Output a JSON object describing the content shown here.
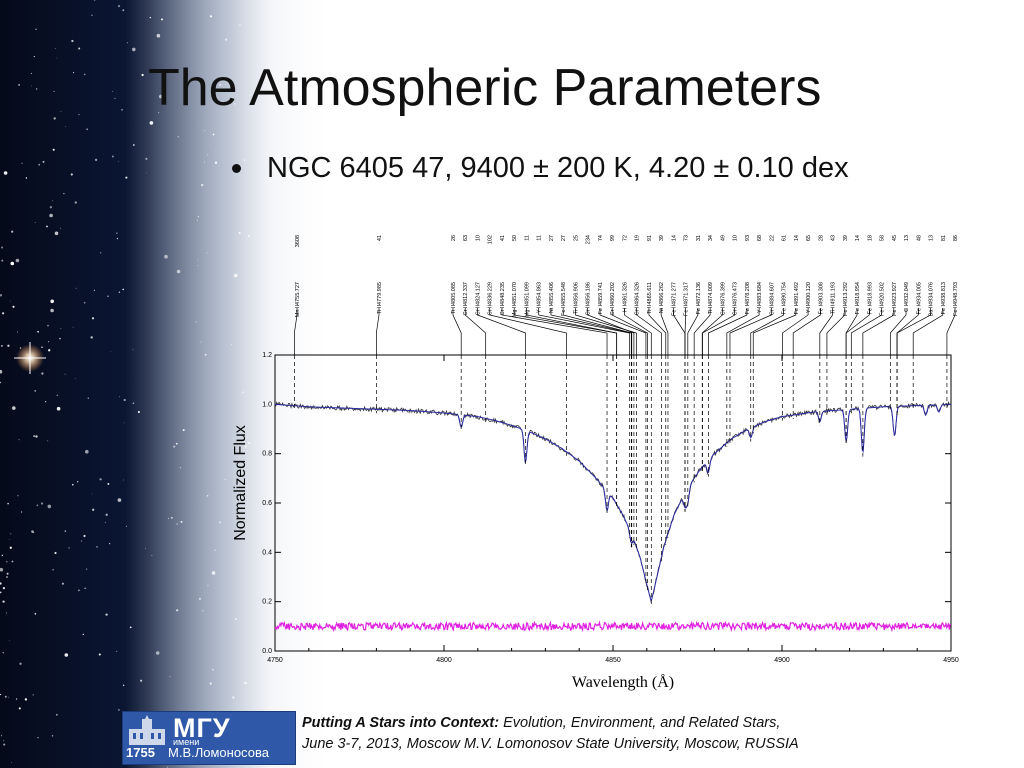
{
  "slide": {
    "title": "The Atmospheric Parameters",
    "bullet": "NGC 6405 47, 9400 ± 200 K, 4.20 ± 0.10 dex"
  },
  "footer": {
    "logo_mgu": "МГУ",
    "logo_imeni": "имени",
    "logo_name": "М.В.Ломоносова",
    "logo_year": "1755",
    "conf_bold": "Putting A Stars into Context:",
    "conf_rest": " Evolution, Environment, and Related Stars,",
    "conf_line2": "June 3-7, 2013, Moscow M.V. Lomonosov State University, Moscow, RUSSIA"
  },
  "colors": {
    "observed": "#333333",
    "model": "#2c2ca8",
    "residual": "#e020e0",
    "linemark": "#000000"
  },
  "chart_data": {
    "type": "line",
    "xlabel": "Wavelength (Å)",
    "ylabel": "Normalized Flux",
    "xlim": [
      4750,
      4950
    ],
    "ylim": [
      0.0,
      1.2
    ],
    "xticks": [
      "4750",
      "4800",
      "4850",
      "4900",
      "4950"
    ],
    "yticks": [
      "0.0",
      "0.2",
      "0.4",
      "0.6",
      "0.8",
      "1.0",
      "1.2"
    ],
    "hbeta_center": 4861.3,
    "spectrum_profile": {
      "x": [
        4750,
        4760,
        4770,
        4780,
        4790,
        4800,
        4810,
        4815,
        4820,
        4825,
        4830,
        4835,
        4840,
        4845,
        4850,
        4853,
        4856,
        4858,
        4860,
        4861.3,
        4863,
        4865,
        4868,
        4872,
        4876,
        4880,
        4885,
        4890,
        4895,
        4900,
        4905,
        4910,
        4920,
        4930,
        4940,
        4950
      ],
      "y": [
        1.0,
        0.99,
        0.985,
        0.98,
        0.975,
        0.965,
        0.95,
        0.935,
        0.915,
        0.89,
        0.86,
        0.82,
        0.77,
        0.7,
        0.62,
        0.55,
        0.46,
        0.38,
        0.27,
        0.2,
        0.3,
        0.42,
        0.55,
        0.66,
        0.74,
        0.8,
        0.86,
        0.9,
        0.93,
        0.95,
        0.96,
        0.97,
        0.98,
        0.99,
        0.995,
        1.0
      ]
    },
    "absorption_dips": [
      {
        "x": 4805.1,
        "depth": 0.05
      },
      {
        "x": 4824.1,
        "depth": 0.13
      },
      {
        "x": 4848.2,
        "depth": 0.08
      },
      {
        "x": 4855.4,
        "depth": 0.04
      },
      {
        "x": 4871.3,
        "depth": 0.05
      },
      {
        "x": 4872.1,
        "depth": 0.06
      },
      {
        "x": 4878.2,
        "depth": 0.05
      },
      {
        "x": 4890.8,
        "depth": 0.04
      },
      {
        "x": 4911.2,
        "depth": 0.04
      },
      {
        "x": 4919.0,
        "depth": 0.13
      },
      {
        "x": 4923.9,
        "depth": 0.18
      },
      {
        "x": 4933.3,
        "depth": 0.12
      },
      {
        "x": 4942.5,
        "depth": 0.04
      },
      {
        "x": 4946.4,
        "depth": 0.03
      }
    ],
    "residual_level": 0.1,
    "line_ids": [
      {
        "ion": "Mn II",
        "wl": "4755.727",
        "ew": "3608",
        "x": 4755.727
      },
      {
        "ion": "Ti II",
        "wl": "4779.985",
        "ew": "41",
        "x": 4779.985
      },
      {
        "ion": "Ti II",
        "wl": "4805.085",
        "ew": "26",
        "x": 4805.085
      },
      {
        "ion": "Cr II",
        "wl": "4812.337",
        "ew": "63",
        "x": 4812.337
      },
      {
        "ion": "Cr II",
        "wl": "4824.127",
        "ew": "10",
        "x": 4824.127
      },
      {
        "ion": "Cr II",
        "wl": "4836.229",
        "ew": "102",
        "x": 4836.229
      },
      {
        "ion": "Cr II",
        "wl": "4848.235",
        "ew": "41",
        "x": 4848.235
      },
      {
        "ion": "Mg II",
        "wl": "4851.070",
        "ew": "50",
        "x": 4851.07
      },
      {
        "ion": "Mg II",
        "wl": "4851.099",
        "ew": "11",
        "x": 4851.099
      },
      {
        "ion": "Y II",
        "wl": "4854.863",
        "ew": "11",
        "x": 4854.863
      },
      {
        "ion": "Ni I",
        "wl": "4855.406",
        "ew": "27",
        "x": 4855.406
      },
      {
        "ion": "Fe II",
        "wl": "4855.548",
        "ew": "27",
        "x": 4855.548
      },
      {
        "ion": "Ti II",
        "wl": "4856.906",
        "ew": "25",
        "x": 4856.906
      },
      {
        "ion": "Cr II",
        "wl": "4856.186",
        "ew": "234",
        "x": 4856.186
      },
      {
        "ion": "Fe I",
        "wl": "4859.741",
        "ew": "74",
        "x": 4859.741
      },
      {
        "ion": "Cr II",
        "wl": "4860.202",
        "ew": "99",
        "x": 4860.202
      },
      {
        "ion": "H I",
        "wl": "4861.326",
        "ew": "72",
        "x": 4861.326
      },
      {
        "ion": "Cr II",
        "wl": "4864.326",
        "ew": "19",
        "x": 4864.326
      },
      {
        "ion": "Ti II",
        "wl": "4865.611",
        "ew": "91",
        "x": 4865.611
      },
      {
        "ion": "Ni I",
        "wl": "4866.262",
        "ew": "39",
        "x": 4866.262
      },
      {
        "ion": "Fe II",
        "wl": "4871.277",
        "ew": "14",
        "x": 4871.277
      },
      {
        "ion": "Fe II",
        "wl": "4871.317",
        "ew": "73",
        "x": 4871.317
      },
      {
        "ion": "Fe I",
        "wl": "4872.136",
        "ew": "31",
        "x": 4872.136
      },
      {
        "ion": "Ti II",
        "wl": "4874.009",
        "ew": "34",
        "x": 4874.009
      },
      {
        "ion": "Cr II",
        "wl": "4876.399",
        "ew": "49",
        "x": 4876.399
      },
      {
        "ion": "Cr II",
        "wl": "4876.473",
        "ew": "10",
        "x": 4876.473
      },
      {
        "ion": "Fe I",
        "wl": "4878.208",
        "ew": "93",
        "x": 4878.208
      },
      {
        "ion": "Y II",
        "wl": "4883.684",
        "ew": "68",
        "x": 4883.684
      },
      {
        "ion": "Cr II",
        "wl": "4884.607",
        "ew": "22",
        "x": 4884.607
      },
      {
        "ion": "Fe I",
        "wl": "4890.754",
        "ew": "61",
        "x": 4890.754
      },
      {
        "ion": "Fe I",
        "wl": "4891.492",
        "ew": "14",
        "x": 4891.492
      },
      {
        "ion": "Y II",
        "wl": "4900.120",
        "ew": "65",
        "x": 4900.12
      },
      {
        "ion": "Fe I",
        "wl": "4903.308",
        "ew": "28",
        "x": 4903.308
      },
      {
        "ion": "Ti II",
        "wl": "4911.193",
        "ew": "43",
        "x": 4911.193
      },
      {
        "ion": "Fe II",
        "wl": "4913.292",
        "ew": "39",
        "x": 4913.292
      },
      {
        "ion": "Fe I",
        "wl": "4918.954",
        "ew": "14",
        "x": 4918.954
      },
      {
        "ion": "Fe I",
        "wl": "4918.993",
        "ew": "18",
        "x": 4918.993
      },
      {
        "ion": "Fe II",
        "wl": "4920.502",
        "ew": "58",
        "x": 4920.502
      },
      {
        "ion": "Fe II",
        "wl": "4923.927",
        "ew": "45",
        "x": 4923.927
      },
      {
        "ion": "C I",
        "wl": "4932.049",
        "ew": "13",
        "x": 4932.049
      },
      {
        "ion": "Fe I",
        "wl": "4934.005",
        "ew": "48",
        "x": 4934.005
      },
      {
        "ion": "Ba II",
        "wl": "4934.076",
        "ew": "13",
        "x": 4934.076
      },
      {
        "ion": "Fe I",
        "wl": "4938.813",
        "ew": "81",
        "x": 4938.813
      },
      {
        "ion": "Fe II",
        "wl": "4948.793",
        "ew": "86",
        "x": 4948.793
      }
    ]
  }
}
